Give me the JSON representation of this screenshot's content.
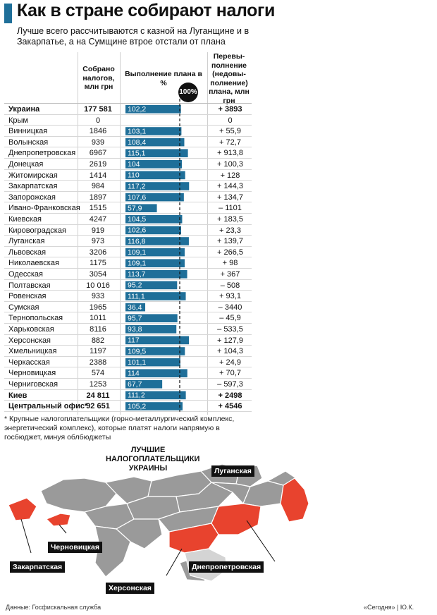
{
  "header": {
    "title": "Как в стране собирают налоги",
    "subtitle": "Лучше всего рассчитываются с казной на Луганщине и в Закарпатье, а на Сумщине втрое отстали от плана"
  },
  "columns": {
    "collected": "Собрано налогов, млн грн",
    "plan": "Выполнение плана в %%",
    "over": "Перевы- полнение (недовы- полнение) плана, млн грн",
    "badge": "100%"
  },
  "chart_data": {
    "type": "table",
    "reference_line": 100,
    "bar_color": "#1f6f99",
    "rows": [
      {
        "name": "Украина",
        "collected": "177 581",
        "plan": 102.2,
        "plan_label": "102,2",
        "diff": "+ 3893",
        "bold": true
      },
      {
        "name": "Крым",
        "collected": "0",
        "plan": null,
        "plan_label": "",
        "diff": "0",
        "bold": false
      },
      {
        "name": "Винницкая",
        "collected": "1846",
        "plan": 103.1,
        "plan_label": "103,1",
        "diff": "+ 55,9",
        "bold": false
      },
      {
        "name": "Волынская",
        "collected": "939",
        "plan": 108.4,
        "plan_label": "108,4",
        "diff": "+ 72,7",
        "bold": false
      },
      {
        "name": "Днепропетровская",
        "collected": "6967",
        "plan": 115.1,
        "plan_label": "115,1",
        "diff": "+ 913,8",
        "bold": false
      },
      {
        "name": "Донецкая",
        "collected": "2619",
        "plan": 104,
        "plan_label": "104",
        "diff": "+ 100,3",
        "bold": false
      },
      {
        "name": "Житомирская",
        "collected": "1414",
        "plan": 110,
        "plan_label": "110",
        "diff": "+ 128",
        "bold": false
      },
      {
        "name": "Закарпатская",
        "collected": "984",
        "plan": 117.2,
        "plan_label": "117,2",
        "diff": "+ 144,3",
        "bold": false
      },
      {
        "name": "Запорожская",
        "collected": "1897",
        "plan": 107.6,
        "plan_label": "107,6",
        "diff": "+ 134,7",
        "bold": false
      },
      {
        "name": "Ивано-Франковская",
        "collected": "1515",
        "plan": 57.9,
        "plan_label": "57,9",
        "diff": "– 1101",
        "bold": false
      },
      {
        "name": "Киевская",
        "collected": "4247",
        "plan": 104.5,
        "plan_label": "104,5",
        "diff": "+ 183,5",
        "bold": false
      },
      {
        "name": "Кировоградская",
        "collected": "919",
        "plan": 102.6,
        "plan_label": "102,6",
        "diff": "+ 23,3",
        "bold": false
      },
      {
        "name": "Луганская",
        "collected": "973",
        "plan": 116.8,
        "plan_label": "116,8",
        "diff": "+ 139,7",
        "bold": false
      },
      {
        "name": "Львовская",
        "collected": "3206",
        "plan": 109.1,
        "plan_label": "109,1",
        "diff": "+ 266,5",
        "bold": false
      },
      {
        "name": "Николаевская",
        "collected": "1175",
        "plan": 109.1,
        "plan_label": "109,1",
        "diff": "+ 98",
        "bold": false
      },
      {
        "name": "Одесская",
        "collected": "3054",
        "plan": 113.7,
        "plan_label": "113,7",
        "diff": "+ 367",
        "bold": false
      },
      {
        "name": "Полтавская",
        "collected": "10 016",
        "plan": 95.2,
        "plan_label": "95,2",
        "diff": "– 508",
        "bold": false
      },
      {
        "name": "Ровенская",
        "collected": "933",
        "plan": 111.1,
        "plan_label": "111,1",
        "diff": "+ 93,1",
        "bold": false
      },
      {
        "name": "Сумская",
        "collected": "1965",
        "plan": 36.4,
        "plan_label": "36,4",
        "diff": "– 3440",
        "bold": false
      },
      {
        "name": "Тернопольская",
        "collected": "1011",
        "plan": 95.7,
        "plan_label": "95,7",
        "diff": "– 45,9",
        "bold": false
      },
      {
        "name": "Харьковская",
        "collected": "8116",
        "plan": 93.8,
        "plan_label": "93,8",
        "diff": "– 533,5",
        "bold": false
      },
      {
        "name": "Херсонская",
        "collected": "882",
        "plan": 117,
        "plan_label": "117",
        "diff": "+ 127,9",
        "bold": false
      },
      {
        "name": "Хмельницкая",
        "collected": "1197",
        "plan": 109.5,
        "plan_label": "109,5",
        "diff": "+ 104,3",
        "bold": false
      },
      {
        "name": "Черкасская",
        "collected": "2388",
        "plan": 101.1,
        "plan_label": "101,1",
        "diff": "+ 24,9",
        "bold": false
      },
      {
        "name": "Черновицкая",
        "collected": "574",
        "plan": 114,
        "plan_label": "114",
        "diff": "+ 70,7",
        "bold": false
      },
      {
        "name": "Черниговская",
        "collected": "1253",
        "plan": 67.7,
        "plan_label": "67,7",
        "diff": "– 597,3",
        "bold": false
      },
      {
        "name": "Киев",
        "collected": "24 811",
        "plan": 111.2,
        "plan_label": "111,2",
        "diff": "+ 2498",
        "bold": true
      },
      {
        "name": "Центральный офис*",
        "collected": "92 651",
        "plan": 105.2,
        "plan_label": "105,2",
        "diff": "+ 4546",
        "bold": true
      }
    ]
  },
  "footnote": "* Крупные налогоплательщики (горно-металлургический комплекс, энергетический комплекс), которые платят налоги напрямую в госбюджет, минуя облбюджеты",
  "map": {
    "title": "ЛУЧШИЕ НАЛОГОПЛАТЕЛЬЩИКИ УКРАИНЫ",
    "highlight_color": "#e8432e",
    "base_color": "#9a9a9a",
    "labels": {
      "luhansk": "Луганская",
      "chernivtsi": "Черновицкая",
      "zakarpattia": "Закарпатская",
      "dnipro": "Днепропетровская",
      "kherson": "Херсонская"
    }
  },
  "source": "Данные: Госфискальная служба",
  "credit": "«Сегодня» | Ю.К."
}
